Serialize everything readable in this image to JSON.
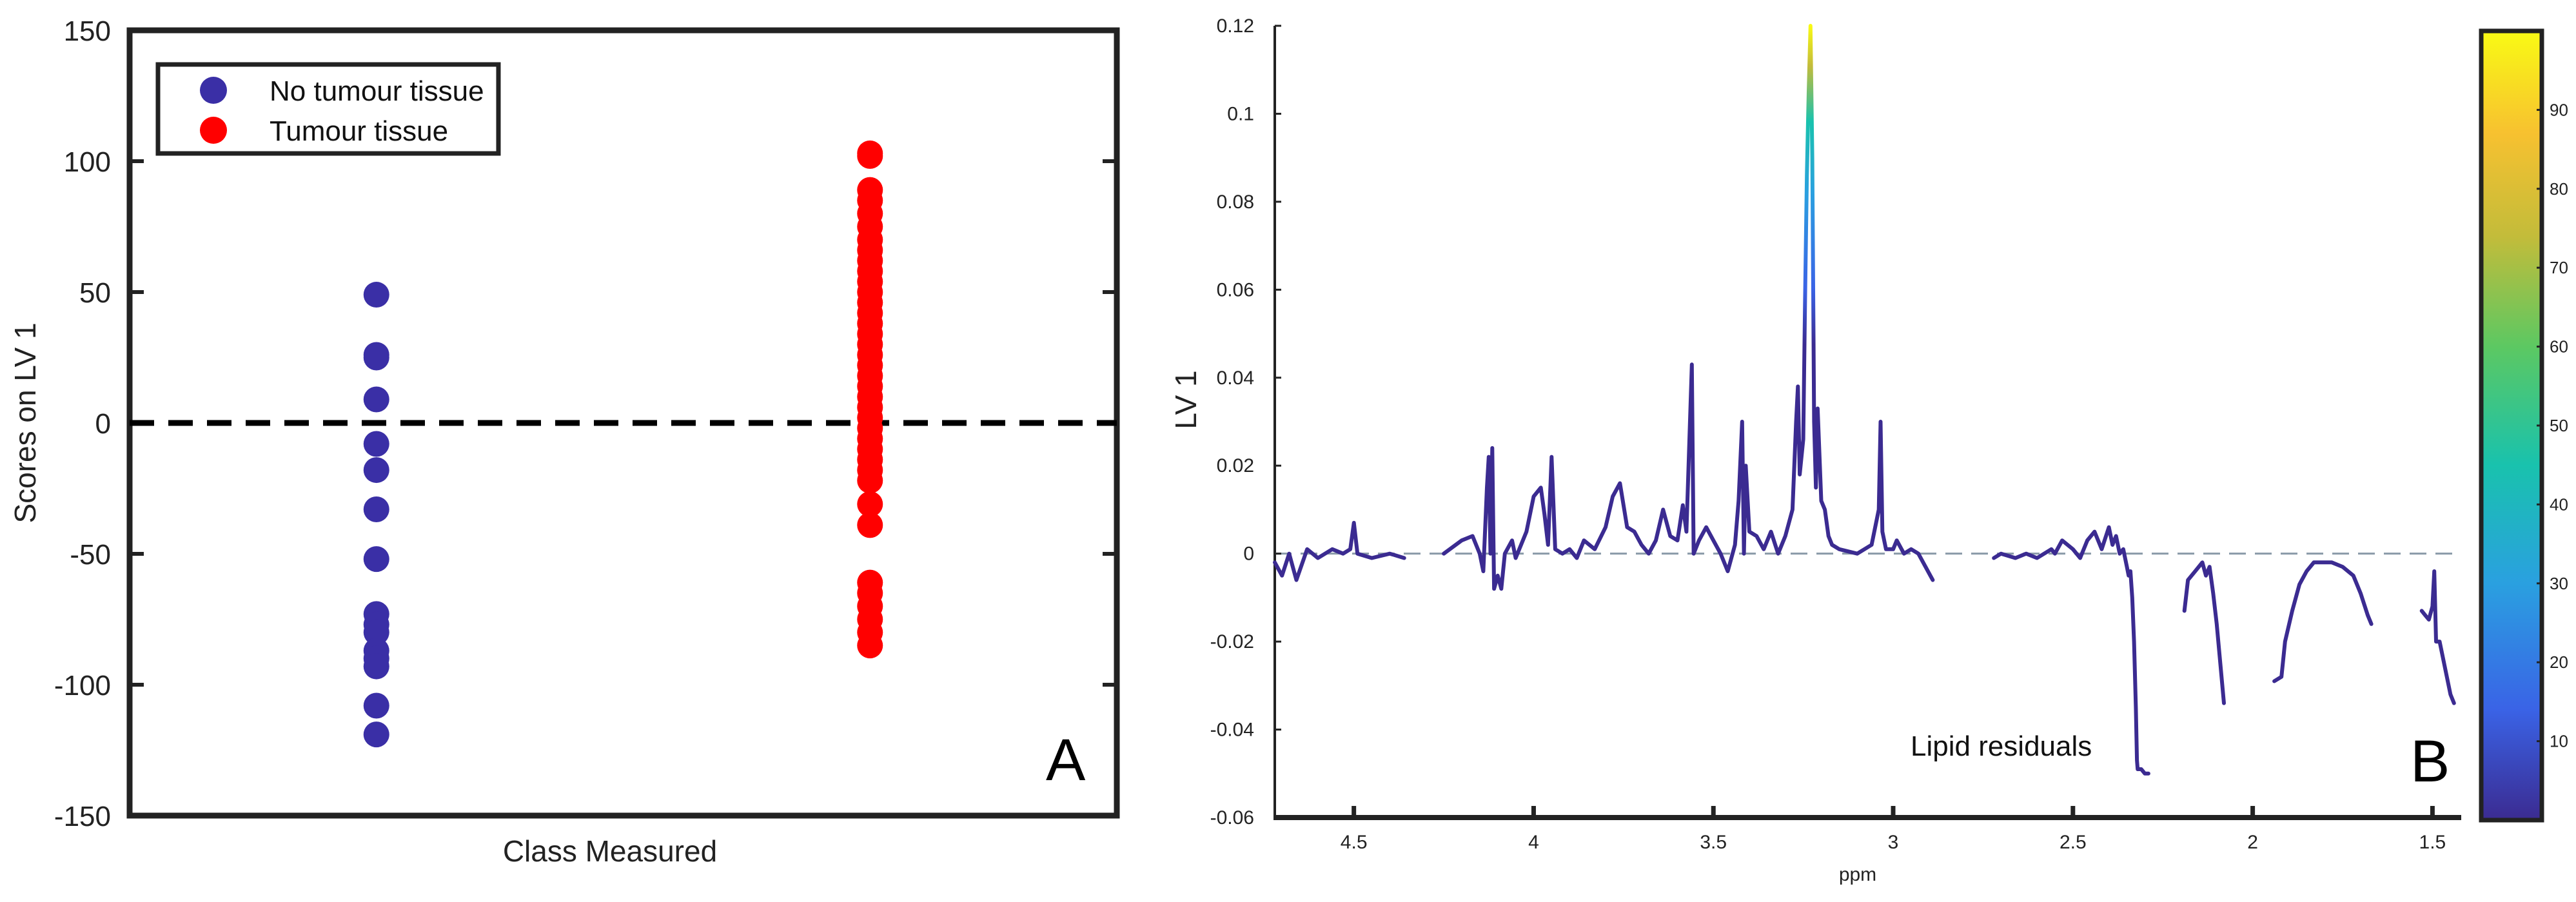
{
  "chart_data": [
    {
      "type": "scatter",
      "panel_label": "A",
      "xlabel": "Class Measured",
      "ylabel": "Scores on LV 1",
      "ylim": [
        -150,
        150
      ],
      "yticks": [
        150,
        100,
        50,
        0,
        -50,
        -100,
        -150
      ],
      "grid": false,
      "legend": "top-left",
      "reference_line": {
        "y": 0,
        "style": "dashed",
        "color": "#000000"
      },
      "series": [
        {
          "name": "No tumour tissue",
          "color": "#3a2fa6",
          "x_position": 0.25,
          "values": [
            49,
            26,
            25,
            9,
            -8,
            -18,
            -33,
            -52,
            -73,
            -77,
            -80,
            -87,
            -90,
            -93,
            -108,
            -119
          ]
        },
        {
          "name": "Tumour tissue",
          "color": "#ff0000",
          "x_position": 0.75,
          "values": [
            103,
            102,
            89,
            85,
            80,
            75,
            70,
            66,
            62,
            58,
            54,
            50,
            46,
            42,
            38,
            34,
            30,
            26,
            22,
            18,
            14,
            10,
            6,
            2,
            -2,
            -6,
            -10,
            -14,
            -18,
            -22,
            -31,
            -39,
            -61,
            -65,
            -70,
            -75,
            -80,
            -85
          ]
        }
      ]
    },
    {
      "type": "line",
      "panel_label": "B",
      "xlabel": "ppm",
      "ylabel": "LV 1",
      "x_reversed": true,
      "xlim": [
        4.72,
        1.42
      ],
      "ylim": [
        -0.06,
        0.12
      ],
      "xticks": [
        "4.5",
        "4",
        "3.5",
        "3",
        "2.5",
        "2",
        "1.5"
      ],
      "yticks": [
        "0.12",
        "0.1",
        "0.08",
        "0.06",
        "0.04",
        "0.02",
        "0",
        "-0.02",
        "-0.04",
        "-0.06"
      ],
      "grid": false,
      "annotation": "Lipid residuals",
      "colorbar": {
        "ticks": [
          "90",
          "80",
          "70",
          "60",
          "50",
          "40",
          "30",
          "20",
          "10"
        ],
        "min": 0,
        "max": 100,
        "colors": [
          "#3b2b91",
          "#3a63e6",
          "#2aa0e0",
          "#19c2ad",
          "#5cc862",
          "#c3bc3a",
          "#f7c130",
          "#f9fa14"
        ]
      },
      "series": [
        {
          "name": "",
          "points": [
            [
              4.72,
              -0.002
            ],
            [
              4.7,
              -0.005
            ],
            [
              4.68,
              0.0
            ],
            [
              4.66,
              -0.006
            ],
            [
              4.63,
              0.001
            ],
            [
              4.6,
              -0.001
            ],
            [
              4.56,
              0.001
            ],
            [
              4.53,
              0.0
            ],
            [
              4.51,
              0.001
            ],
            [
              4.5,
              0.007
            ],
            [
              4.49,
              0.0
            ],
            [
              4.45,
              -0.001
            ],
            [
              4.4,
              0.0
            ],
            [
              4.36,
              -0.001
            ]
          ]
        },
        {
          "name": "",
          "points": [
            [
              4.25,
              0.0
            ],
            [
              4.2,
              0.003
            ],
            [
              4.17,
              0.004
            ],
            [
              4.15,
              0.0
            ],
            [
              4.14,
              -0.004
            ],
            [
              4.13,
              0.015
            ],
            [
              4.125,
              0.022
            ],
            [
              4.12,
              0.0
            ],
            [
              4.115,
              0.024
            ],
            [
              4.11,
              -0.008
            ],
            [
              4.1,
              -0.005
            ],
            [
              4.09,
              -0.008
            ],
            [
              4.08,
              0.0
            ],
            [
              4.06,
              0.003
            ],
            [
              4.05,
              -0.001
            ],
            [
              4.04,
              0.001
            ],
            [
              4.02,
              0.005
            ],
            [
              4.0,
              0.013
            ],
            [
              3.98,
              0.015
            ],
            [
              3.97,
              0.009
            ],
            [
              3.96,
              0.002
            ],
            [
              3.95,
              0.022
            ],
            [
              3.94,
              0.001
            ],
            [
              3.92,
              0.0
            ],
            [
              3.9,
              0.001
            ],
            [
              3.88,
              -0.001
            ],
            [
              3.86,
              0.003
            ],
            [
              3.83,
              0.001
            ],
            [
              3.8,
              0.006
            ],
            [
              3.78,
              0.013
            ],
            [
              3.76,
              0.016
            ],
            [
              3.74,
              0.006
            ],
            [
              3.72,
              0.005
            ],
            [
              3.7,
              0.002
            ],
            [
              3.68,
              0.0
            ],
            [
              3.66,
              0.003
            ],
            [
              3.64,
              0.01
            ],
            [
              3.62,
              0.004
            ],
            [
              3.6,
              0.003
            ],
            [
              3.585,
              0.011
            ],
            [
              3.575,
              0.005
            ],
            [
              3.56,
              0.043
            ],
            [
              3.555,
              0.0
            ],
            [
              3.54,
              0.003
            ],
            [
              3.52,
              0.006
            ],
            [
              3.5,
              0.003
            ],
            [
              3.48,
              0.0
            ],
            [
              3.46,
              -0.004
            ],
            [
              3.44,
              0.002
            ],
            [
              3.43,
              0.012
            ],
            [
              3.42,
              0.03
            ],
            [
              3.415,
              0.0
            ],
            [
              3.41,
              0.02
            ],
            [
              3.4,
              0.005
            ],
            [
              3.38,
              0.004
            ],
            [
              3.36,
              0.001
            ],
            [
              3.34,
              0.005
            ],
            [
              3.32,
              0.0
            ],
            [
              3.3,
              0.004
            ],
            [
              3.28,
              0.01
            ],
            [
              3.27,
              0.03
            ],
            [
              3.265,
              0.038
            ],
            [
              3.26,
              0.018
            ],
            [
              3.25,
              0.026
            ],
            [
              3.245,
              0.058
            ],
            [
              3.24,
              0.086
            ],
            [
              3.235,
              0.105
            ],
            [
              3.23,
              0.12
            ],
            [
              3.225,
              0.09
            ],
            [
              3.22,
              0.03
            ],
            [
              3.215,
              0.015
            ],
            [
              3.21,
              0.033
            ],
            [
              3.2,
              0.012
            ],
            [
              3.19,
              0.01
            ],
            [
              3.18,
              0.004
            ],
            [
              3.17,
              0.002
            ],
            [
              3.15,
              0.001
            ],
            [
              3.1,
              0.0
            ],
            [
              3.06,
              0.002
            ],
            [
              3.04,
              0.01
            ],
            [
              3.035,
              0.03
            ],
            [
              3.03,
              0.005
            ],
            [
              3.02,
              0.001
            ],
            [
              3.0,
              0.001
            ],
            [
              2.99,
              0.003
            ],
            [
              2.97,
              0.0
            ],
            [
              2.95,
              0.001
            ],
            [
              2.93,
              0.0
            ],
            [
              2.91,
              -0.003
            ],
            [
              2.89,
              -0.006
            ]
          ]
        },
        {
          "name": "",
          "points": [
            [
              2.72,
              -0.001
            ],
            [
              2.7,
              0.0
            ],
            [
              2.66,
              -0.001
            ],
            [
              2.63,
              0.0
            ],
            [
              2.6,
              -0.001
            ],
            [
              2.56,
              0.001
            ],
            [
              2.55,
              0.0
            ],
            [
              2.53,
              0.003
            ],
            [
              2.5,
              0.001
            ],
            [
              2.48,
              -0.001
            ],
            [
              2.46,
              0.003
            ],
            [
              2.44,
              0.005
            ],
            [
              2.42,
              0.001
            ],
            [
              2.4,
              0.006
            ],
            [
              2.39,
              0.002
            ],
            [
              2.38,
              0.004
            ],
            [
              2.37,
              0.0
            ],
            [
              2.36,
              0.001
            ],
            [
              2.35,
              -0.003
            ],
            [
              2.345,
              -0.005
            ],
            [
              2.34,
              -0.004
            ],
            [
              2.335,
              -0.01
            ],
            [
              2.33,
              -0.02
            ],
            [
              2.325,
              -0.035
            ],
            [
              2.322,
              -0.047
            ],
            [
              2.32,
              -0.049
            ],
            [
              2.31,
              -0.049
            ],
            [
              2.3,
              -0.05
            ],
            [
              2.29,
              -0.05
            ]
          ]
        },
        {
          "name": "",
          "points": [
            [
              2.19,
              -0.013
            ],
            [
              2.18,
              -0.006
            ],
            [
              2.16,
              -0.004
            ],
            [
              2.14,
              -0.002
            ],
            [
              2.13,
              -0.005
            ],
            [
              2.12,
              -0.003
            ],
            [
              2.11,
              -0.009
            ],
            [
              2.1,
              -0.016
            ],
            [
              2.09,
              -0.025
            ],
            [
              2.08,
              -0.034
            ]
          ]
        },
        {
          "name": "",
          "points": [
            [
              1.94,
              -0.029
            ],
            [
              1.92,
              -0.028
            ],
            [
              1.91,
              -0.02
            ],
            [
              1.89,
              -0.013
            ],
            [
              1.87,
              -0.007
            ],
            [
              1.85,
              -0.004
            ],
            [
              1.83,
              -0.002
            ],
            [
              1.8,
              -0.002
            ],
            [
              1.78,
              -0.002
            ],
            [
              1.75,
              -0.003
            ],
            [
              1.72,
              -0.005
            ],
            [
              1.7,
              -0.009
            ],
            [
              1.68,
              -0.014
            ],
            [
              1.67,
              -0.016
            ]
          ]
        },
        {
          "name": "",
          "points": [
            [
              1.53,
              -0.013
            ],
            [
              1.52,
              -0.014
            ],
            [
              1.51,
              -0.015
            ],
            [
              1.5,
              -0.012
            ],
            [
              1.495,
              -0.004
            ],
            [
              1.49,
              -0.02
            ],
            [
              1.48,
              -0.02
            ],
            [
              1.47,
              -0.024
            ],
            [
              1.46,
              -0.028
            ],
            [
              1.45,
              -0.032
            ],
            [
              1.44,
              -0.034
            ]
          ]
        }
      ]
    }
  ]
}
